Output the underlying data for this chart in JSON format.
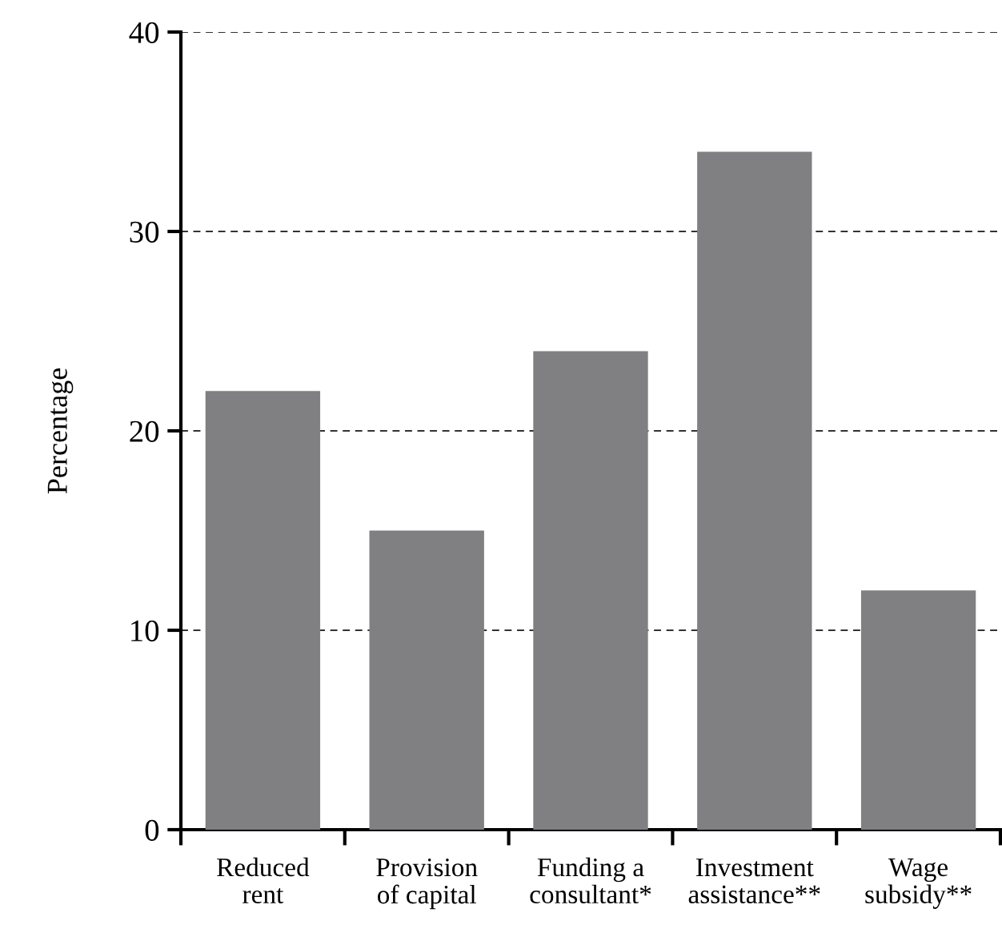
{
  "chart_data": {
    "type": "bar",
    "ylabel": "Percentage",
    "categories": [
      "Reduced\nrent",
      "Provision\nof capital",
      "Funding a\nconsultant*",
      "Investment\nassistance**",
      "Wage\nsubsidy**"
    ],
    "values": [
      22,
      15,
      24,
      34,
      12
    ],
    "color": "#808083",
    "ylim": [
      0,
      40
    ],
    "yticks": [
      0,
      10,
      20,
      30,
      40
    ],
    "grid": "y"
  }
}
